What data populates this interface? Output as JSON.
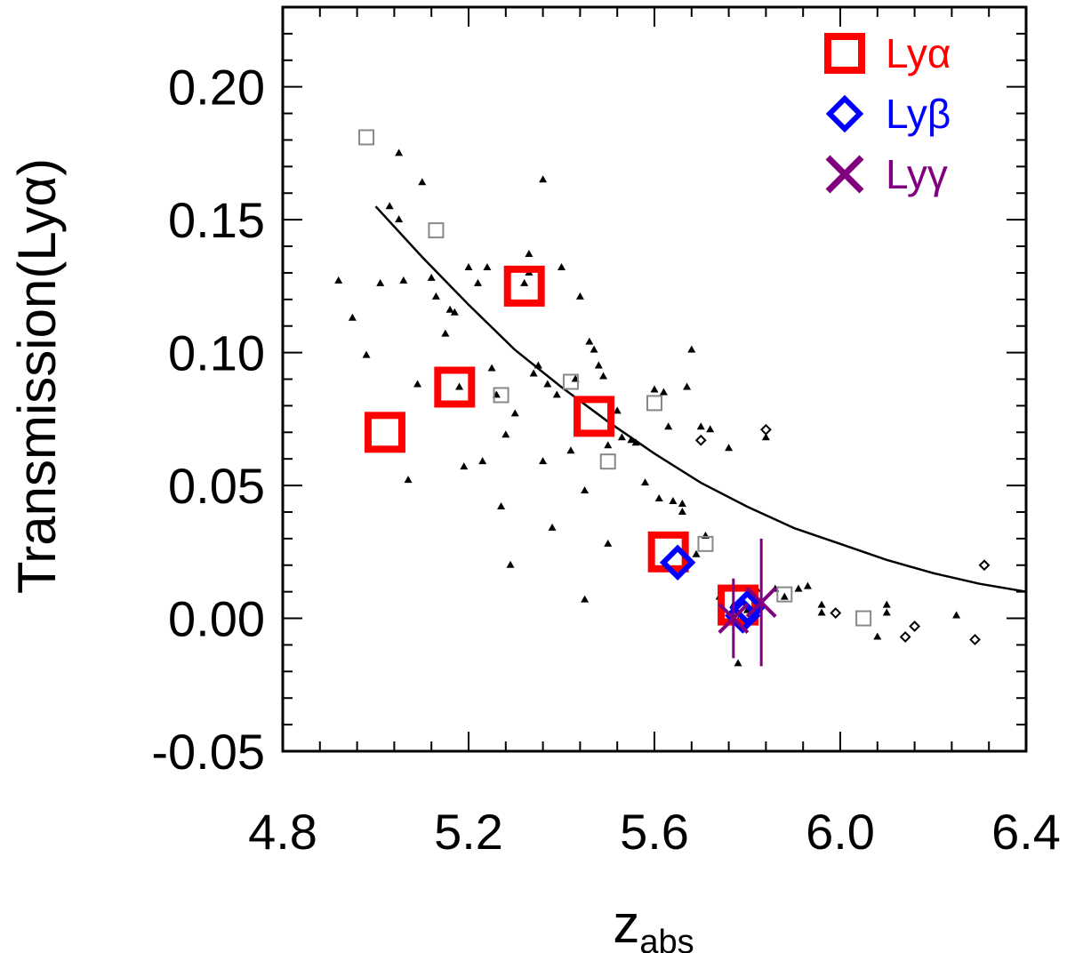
{
  "chart_data": {
    "type": "scatter",
    "title": "",
    "xlabel": "z",
    "xlabel_sub": "abs",
    "ylabel": "Transmission(Lyα)",
    "xlim": [
      4.8,
      6.4
    ],
    "ylim": [
      -0.05,
      0.23
    ],
    "x_ticks": [
      "4.8",
      "5.2",
      "5.6",
      "6.0",
      "6.4"
    ],
    "x_tick_values": [
      4.8,
      5.2,
      5.6,
      6.0,
      6.4
    ],
    "y_ticks": [
      "-0.05",
      "0.00",
      "0.05",
      "0.10",
      "0.15",
      "0.20"
    ],
    "y_tick_values": [
      -0.05,
      0.0,
      0.05,
      0.1,
      0.15,
      0.2
    ],
    "x_minor_step": 0.08,
    "y_minor_step": 0.01,
    "legend": [
      {
        "label": "Lyα",
        "marker": "square",
        "color": "#ff0000"
      },
      {
        "label": "Lyβ",
        "marker": "diamond",
        "color": "#0000ff"
      },
      {
        "label": "Lyγ",
        "marker": "x",
        "color": "#800080"
      }
    ],
    "series": [
      {
        "name": "Lyα",
        "marker": "square",
        "color": "#ff0000",
        "points": [
          [
            5.02,
            0.07
          ],
          [
            5.17,
            0.087
          ],
          [
            5.32,
            0.125
          ],
          [
            5.47,
            0.076
          ],
          [
            5.63,
            0.025
          ],
          [
            5.78,
            0.005
          ]
        ]
      },
      {
        "name": "Lyβ",
        "marker": "diamond",
        "color": "#0000ff",
        "points": [
          [
            5.65,
            0.021
          ],
          [
            5.79,
            0.001
          ],
          [
            5.8,
            0.004
          ]
        ]
      },
      {
        "name": "Lyγ",
        "marker": "x",
        "color": "#800080",
        "points": [
          [
            5.77,
            0.0,
            -0.015,
            0.015
          ],
          [
            5.83,
            0.006,
            -0.018,
            0.03
          ]
        ]
      },
      {
        "name": "comparison-open-squares",
        "marker": "open-square",
        "color": "#888888",
        "points": [
          [
            4.98,
            0.181
          ],
          [
            5.13,
            0.146
          ],
          [
            5.27,
            0.084
          ],
          [
            5.42,
            0.089
          ],
          [
            5.5,
            0.059
          ],
          [
            5.6,
            0.081
          ],
          [
            5.71,
            0.028
          ],
          [
            5.88,
            0.009
          ],
          [
            6.05,
            0.0
          ]
        ]
      },
      {
        "name": "literature-triangles",
        "marker": "triangle",
        "color": "#000000",
        "points": [
          [
            4.92,
            0.127
          ],
          [
            4.95,
            0.113
          ],
          [
            4.98,
            0.099
          ],
          [
            5.01,
            0.126
          ],
          [
            5.03,
            0.155
          ],
          [
            5.05,
            0.175
          ],
          [
            5.05,
            0.15
          ],
          [
            5.06,
            0.127
          ],
          [
            5.07,
            0.052
          ],
          [
            5.09,
            0.088
          ],
          [
            5.1,
            0.164
          ],
          [
            5.12,
            0.128
          ],
          [
            5.13,
            0.121
          ],
          [
            5.15,
            0.107
          ],
          [
            5.16,
            0.116
          ],
          [
            5.17,
            0.115
          ],
          [
            5.18,
            0.087
          ],
          [
            5.19,
            0.057
          ],
          [
            5.2,
            0.132
          ],
          [
            5.22,
            0.126
          ],
          [
            5.23,
            0.059
          ],
          [
            5.24,
            0.132
          ],
          [
            5.25,
            0.094
          ],
          [
            5.26,
            0.084
          ],
          [
            5.27,
            0.042
          ],
          [
            5.28,
            0.069
          ],
          [
            5.29,
            0.02
          ],
          [
            5.3,
            0.077
          ],
          [
            5.32,
            0.126
          ],
          [
            5.33,
            0.13
          ],
          [
            5.33,
            0.137
          ],
          [
            5.34,
            0.092
          ],
          [
            5.35,
            0.095
          ],
          [
            5.36,
            0.059
          ],
          [
            5.36,
            0.165
          ],
          [
            5.37,
            0.088
          ],
          [
            5.38,
            0.034
          ],
          [
            5.39,
            0.084
          ],
          [
            5.4,
            0.132
          ],
          [
            5.42,
            0.063
          ],
          [
            5.43,
            0.09
          ],
          [
            5.44,
            0.121
          ],
          [
            5.45,
            0.048
          ],
          [
            5.45,
            0.007
          ],
          [
            5.46,
            0.104
          ],
          [
            5.47,
            0.101
          ],
          [
            5.48,
            0.095
          ],
          [
            5.49,
            0.091
          ],
          [
            5.5,
            0.065
          ],
          [
            5.5,
            0.028
          ],
          [
            5.52,
            0.078
          ],
          [
            5.53,
            0.068
          ],
          [
            5.55,
            0.067
          ],
          [
            5.56,
            0.066
          ],
          [
            5.58,
            0.051
          ],
          [
            5.6,
            0.086
          ],
          [
            5.61,
            0.045
          ],
          [
            5.62,
            0.085
          ],
          [
            5.63,
            0.072
          ],
          [
            5.64,
            0.044
          ],
          [
            5.66,
            0.043
          ],
          [
            5.66,
            0.04
          ],
          [
            5.67,
            0.087
          ],
          [
            5.68,
            0.101
          ],
          [
            5.69,
            0.024
          ],
          [
            5.7,
            0.072
          ],
          [
            5.71,
            0.031
          ],
          [
            5.72,
            0.071
          ],
          [
            5.74,
            0.008
          ],
          [
            5.76,
            0.064
          ],
          [
            5.77,
            0.005
          ],
          [
            5.78,
            -0.001
          ],
          [
            5.78,
            -0.017
          ],
          [
            5.8,
            0.003
          ],
          [
            5.82,
            0.011
          ],
          [
            5.84,
            0.068
          ],
          [
            5.86,
            0.011
          ],
          [
            5.88,
            0.008
          ],
          [
            5.91,
            0.011
          ],
          [
            5.93,
            0.012
          ],
          [
            5.96,
            0.005
          ],
          [
            5.96,
            0.002
          ],
          [
            6.08,
            -0.007
          ],
          [
            6.1,
            0.005
          ],
          [
            6.1,
            0.002
          ],
          [
            6.25,
            0.001
          ]
        ]
      },
      {
        "name": "literature-open-diamonds",
        "marker": "open-diamond",
        "color": "#000000",
        "points": [
          [
            5.7,
            0.067
          ],
          [
            5.84,
            0.071
          ],
          [
            5.99,
            0.002
          ],
          [
            6.14,
            -0.007
          ],
          [
            6.16,
            -0.003
          ],
          [
            6.29,
            -0.008
          ],
          [
            6.31,
            0.02
          ]
        ]
      }
    ],
    "model_curve": {
      "name": "model",
      "color": "#000000",
      "points": [
        [
          5.0,
          0.155
        ],
        [
          5.1,
          0.136
        ],
        [
          5.2,
          0.118
        ],
        [
          5.3,
          0.101
        ],
        [
          5.4,
          0.087
        ],
        [
          5.5,
          0.074
        ],
        [
          5.6,
          0.062
        ],
        [
          5.7,
          0.051
        ],
        [
          5.8,
          0.042
        ],
        [
          5.9,
          0.034
        ],
        [
          6.0,
          0.028
        ],
        [
          6.1,
          0.022
        ],
        [
          6.2,
          0.017
        ],
        [
          6.3,
          0.013
        ],
        [
          6.4,
          0.01
        ]
      ]
    }
  }
}
